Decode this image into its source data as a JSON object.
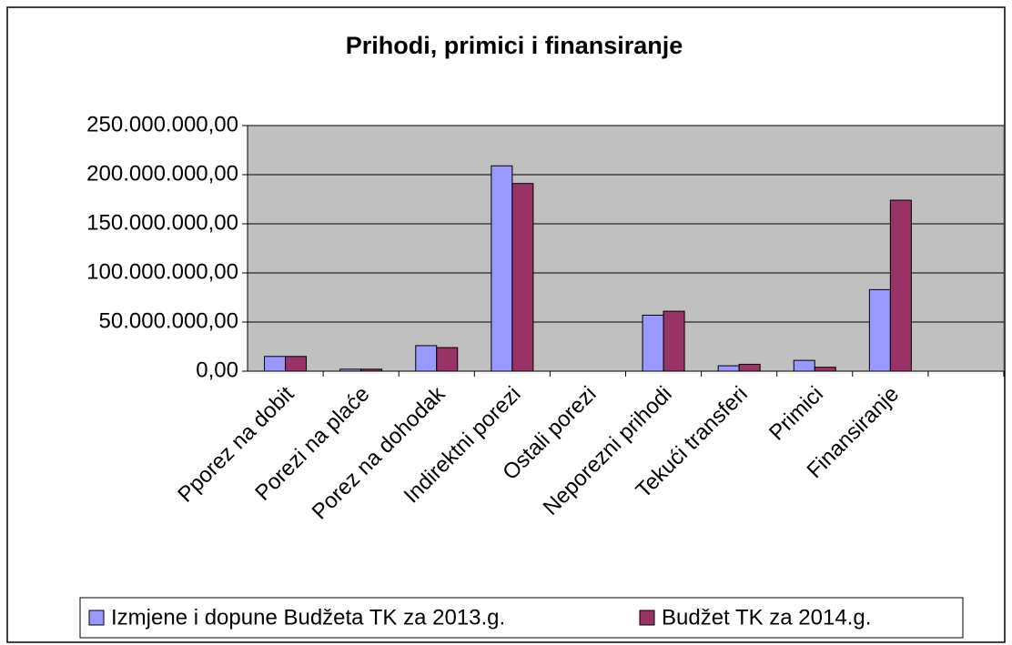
{
  "chart_data": {
    "type": "bar",
    "title": "Prihodi, primici i finansiranje",
    "categories": [
      "Pporez na dobit",
      "Porezi na plaće",
      "Porez na dohodak",
      "Indirektni porezi",
      "Ostali porezi",
      "Neporezni prihodi",
      "Tekući transferi",
      "Primici",
      "Finansiranje",
      null
    ],
    "series": [
      {
        "name": "Izmjene i dopune Budžeta TK za 2013.g.",
        "color": "#9999ff",
        "values": [
          15000000,
          2000000,
          26000000,
          209000000,
          0,
          57000000,
          5500000,
          11000000,
          83000000,
          null
        ]
      },
      {
        "name": "Budžet TK za 2014.g.",
        "color": "#993366",
        "values": [
          15000000,
          2000000,
          24000000,
          191000000,
          0,
          61000000,
          7000000,
          4000000,
          174000000,
          null
        ]
      }
    ],
    "ylim": [
      0,
      250000000
    ],
    "yticks": [
      {
        "value": 0,
        "label": "0,00"
      },
      {
        "value": 50000000,
        "label": "50.000.000,00"
      },
      {
        "value": 100000000,
        "label": "100.000.000,00"
      },
      {
        "value": 150000000,
        "label": "150.000.000,00"
      },
      {
        "value": 200000000,
        "label": "200.000.000,00"
      },
      {
        "value": 250000000,
        "label": "250.000.000,00"
      }
    ],
    "grid": true,
    "plot_background": "#c0c0c0",
    "legend": "bottom"
  }
}
